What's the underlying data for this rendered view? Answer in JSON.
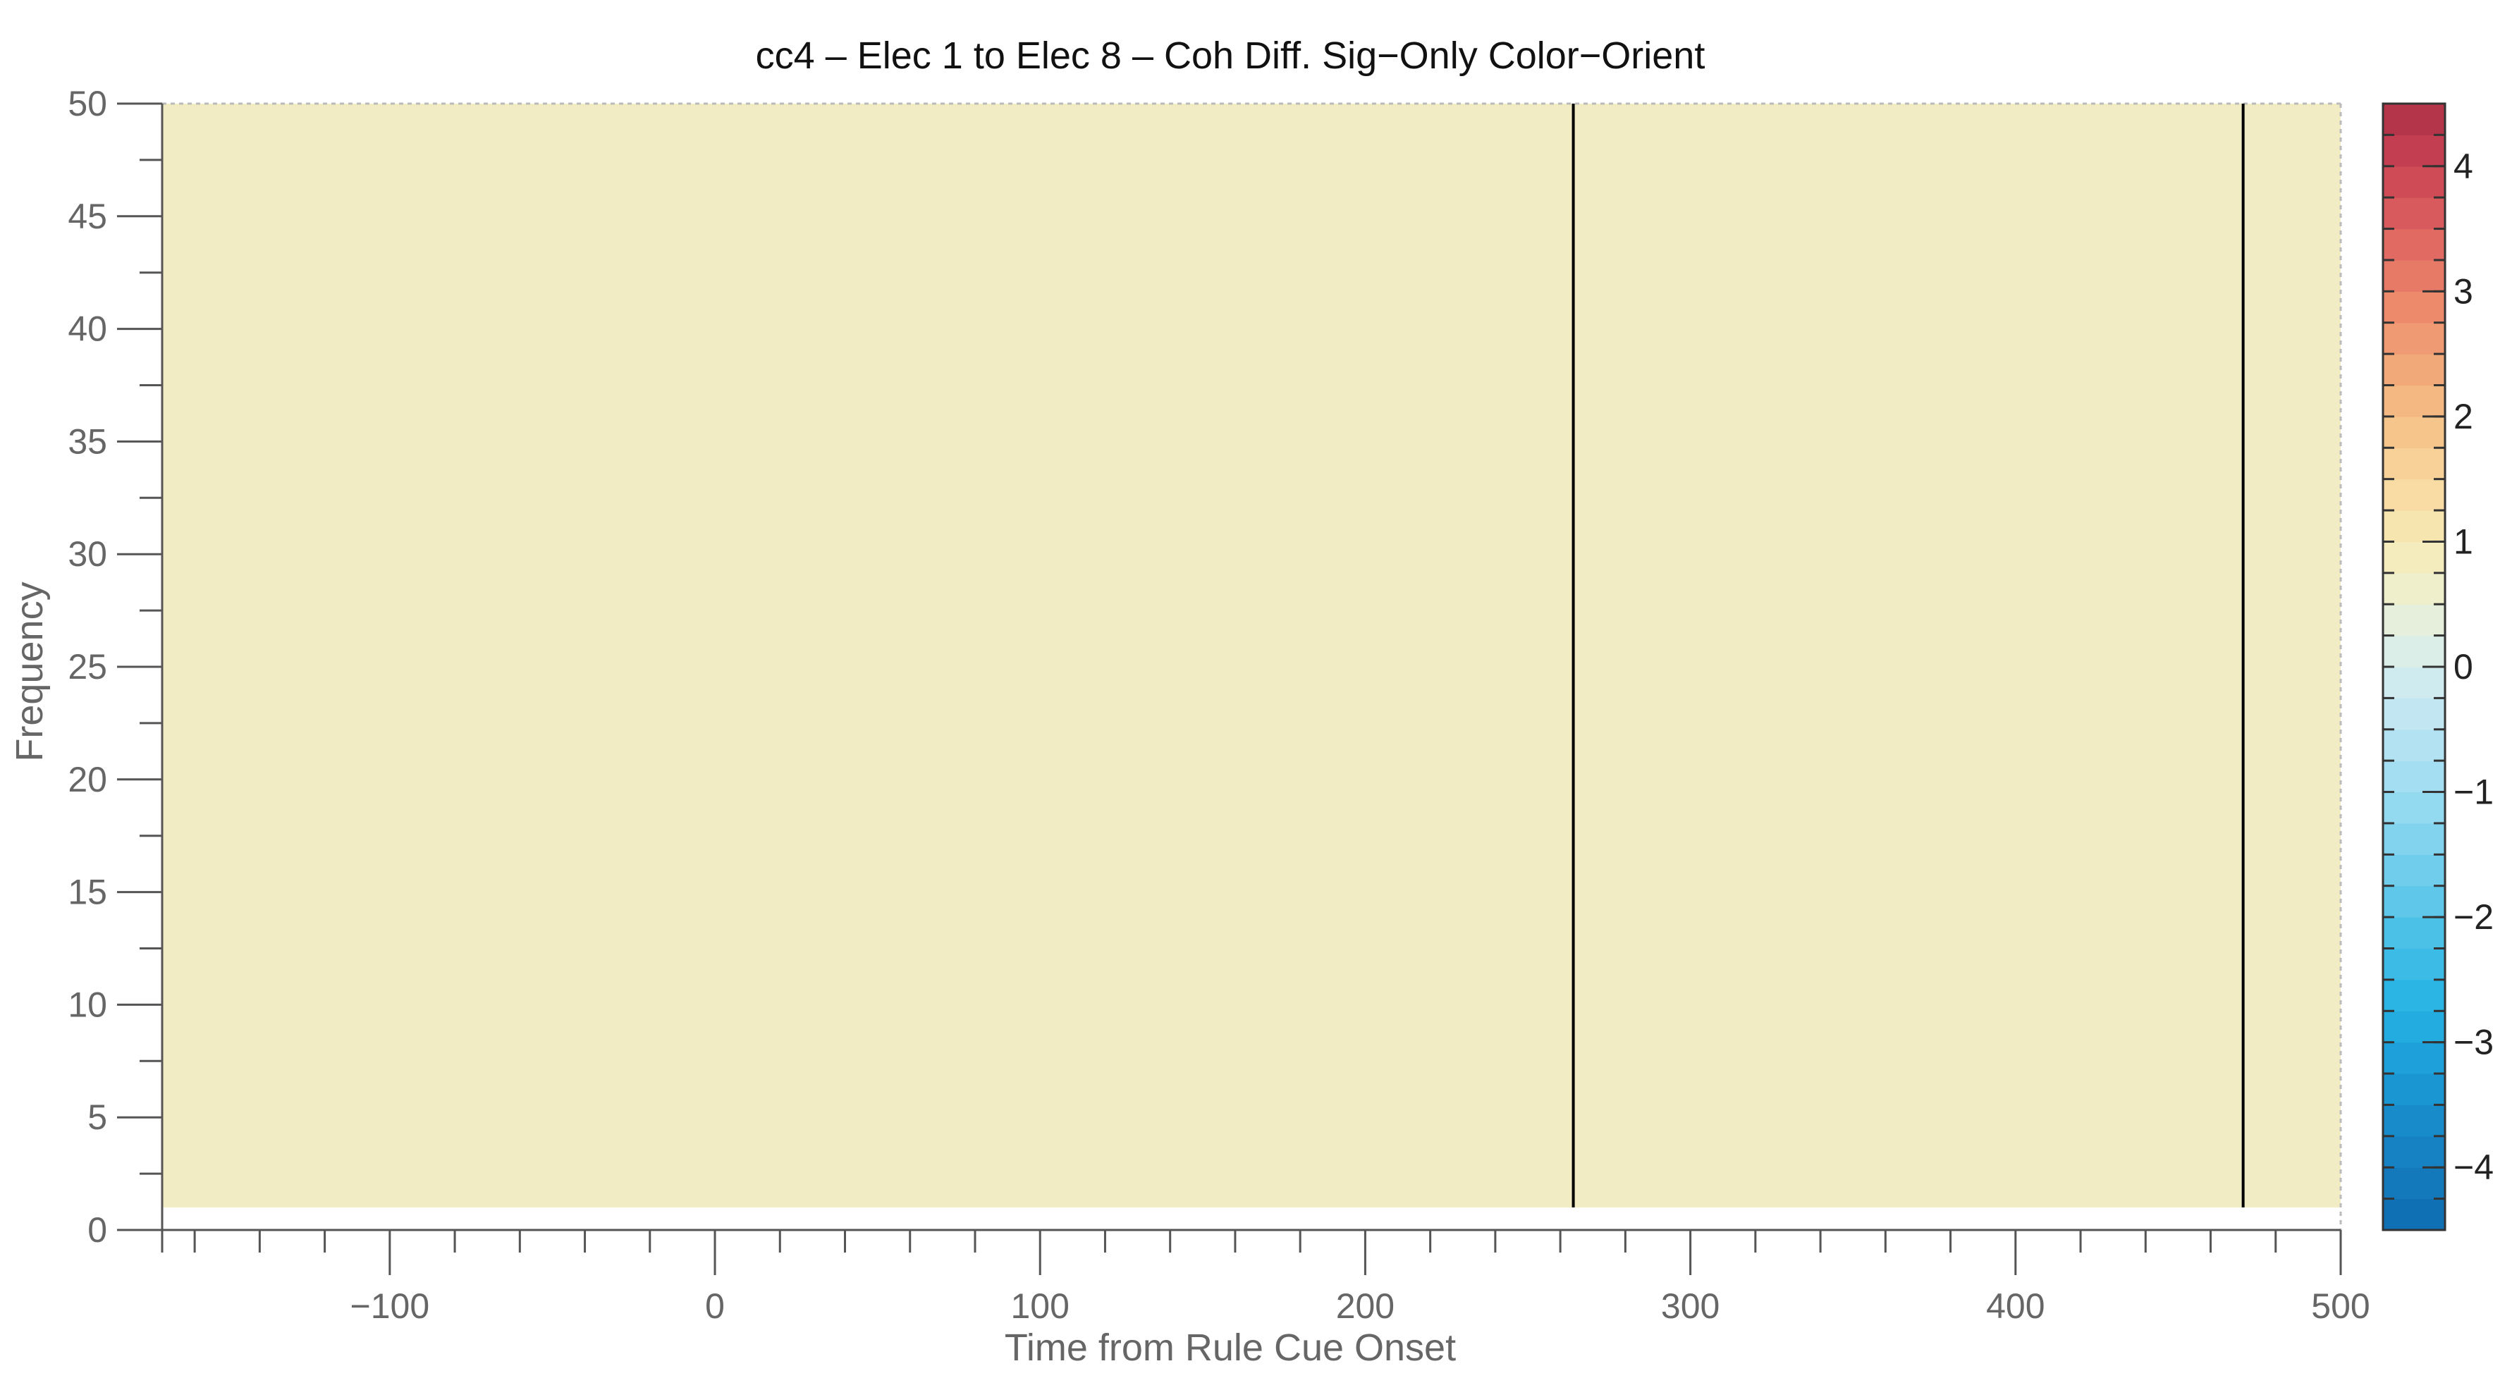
{
  "chart_data": {
    "type": "heatmap",
    "title": "cc4 – Elec 1 to Elec 8 – Coh Diff. Sig−Only Color−Orient",
    "xlabel": "Time from Rule Cue Onset",
    "ylabel": "Frequency",
    "xlim": [
      -170,
      500
    ],
    "ylim": [
      0,
      50
    ],
    "data_extent": {
      "x": [
        -170,
        500
      ],
      "y": [
        1,
        50
      ]
    },
    "x_ticks": [
      -100,
      0,
      100,
      200,
      300,
      400,
      500
    ],
    "x_tick_labels": [
      "−100",
      "0",
      "100",
      "200",
      "300",
      "400",
      "500"
    ],
    "y_ticks": [
      0,
      5,
      10,
      15,
      20,
      25,
      30,
      35,
      40,
      45,
      50
    ],
    "y_tick_labels": [
      "0",
      "5",
      "10",
      "15",
      "20",
      "25",
      "30",
      "35",
      "40",
      "45",
      "50"
    ],
    "values_description_uniform_value": 0,
    "vertical_lines": [
      {
        "x": 264,
        "color": "#000000"
      },
      {
        "x": 470,
        "color": "#000000"
      }
    ],
    "fill_color": "#f2ecc4",
    "colorbar": {
      "clim": [
        -4.5,
        4.5
      ],
      "ticks": [
        -4,
        -3,
        -2,
        -1,
        0,
        1,
        2,
        3,
        4
      ],
      "tick_labels": [
        "−4",
        "−3",
        "−2",
        "−1",
        "0",
        "1",
        "2",
        "3",
        "4"
      ],
      "levels": 36,
      "colors": [
        "#0f71b4",
        "#1379bb",
        "#1682c3",
        "#188cca",
        "#1a96d2",
        "#1ea1da",
        "#22ace0",
        "#2ab5e4",
        "#3bbbe6",
        "#4cc1e8",
        "#5ec7ea",
        "#70cdec",
        "#82d3ee",
        "#93d9f0",
        "#a3def2",
        "#b3e3f3",
        "#c2e7f2",
        "#d0ebef",
        "#dceee8",
        "#e6efdc",
        "#efefcc",
        "#f4ecbc",
        "#f7e5b0",
        "#f8dca4",
        "#f7d198",
        "#f6c58c",
        "#f4b883",
        "#f2a97a",
        "#ef9a72",
        "#ec8a6b",
        "#e77a66",
        "#e16a62",
        "#d95a5c",
        "#cf4b56",
        "#c33e51",
        "#b4344a"
      ]
    }
  }
}
